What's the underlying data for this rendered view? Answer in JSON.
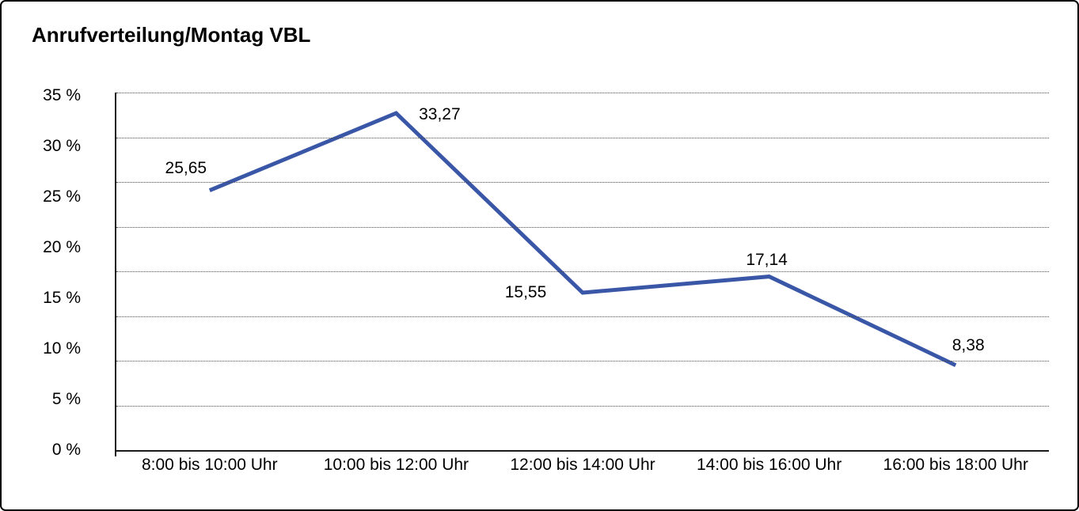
{
  "title": "Anrufverteilung/Montag VBL",
  "chart_data": {
    "type": "line",
    "title": "Anrufverteilung/Montag VBL",
    "categories": [
      "8:00 bis 10:00 Uhr",
      "10:00 bis 12:00 Uhr",
      "12:00 bis 14:00 Uhr",
      "14:00 bis 16:00 Uhr",
      "16:00 bis 18:00 Uhr"
    ],
    "values": [
      25.65,
      33.27,
      15.55,
      17.14,
      8.38
    ],
    "point_labels": [
      "25,65",
      "33,27",
      "15,55",
      "17,14",
      "8,38"
    ],
    "xlabel": "",
    "ylabel": "",
    "ylim": [
      0,
      35
    ],
    "y_ticks": [
      0,
      5,
      10,
      15,
      20,
      25,
      30,
      35
    ],
    "y_tick_labels": [
      "0 %",
      "5 %",
      "10 %",
      "15 %",
      "20 %",
      "25 %",
      "30 %",
      "35 %"
    ],
    "grid": "horizontal-dotted",
    "legend_position": "none",
    "line_color": "#3a57a7"
  },
  "colors": {
    "line": "#3a57a7",
    "axis": "#1a1a1a",
    "grid": "#4a4a4a",
    "text": "#000000",
    "frame_border": "#000000",
    "background": "#ffffff"
  }
}
